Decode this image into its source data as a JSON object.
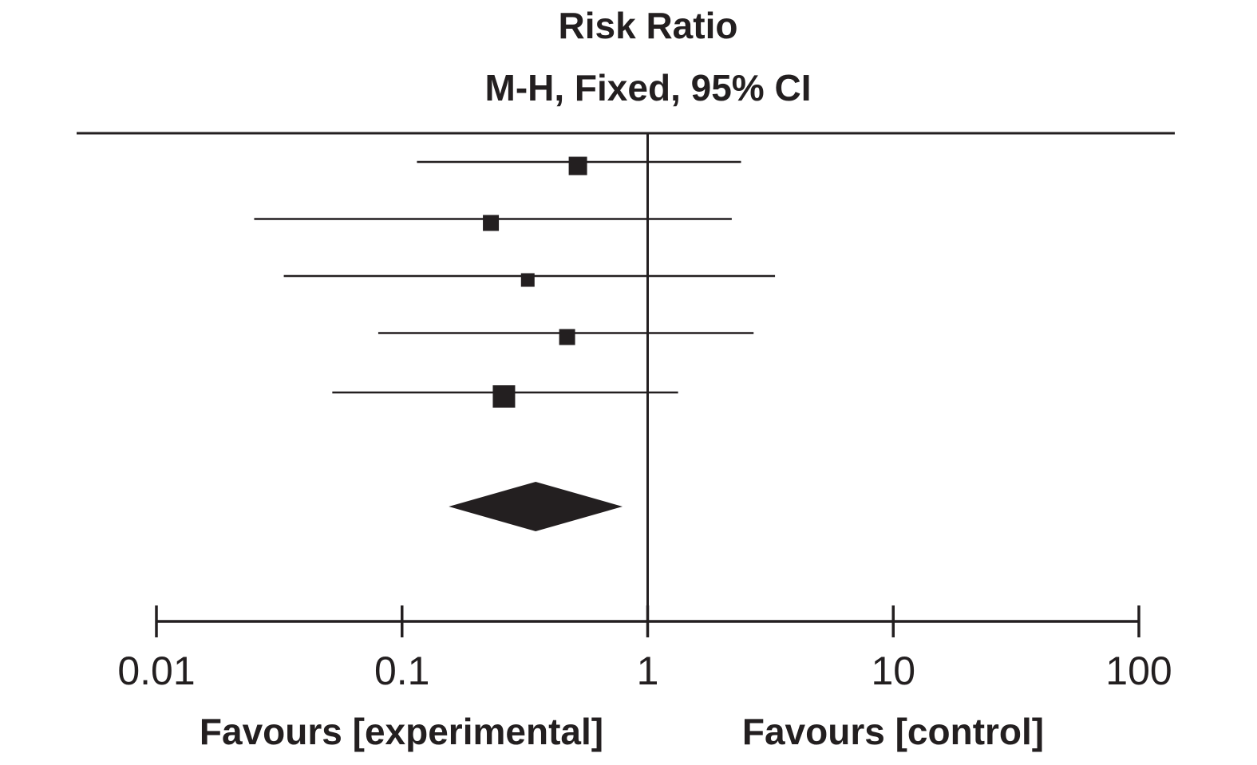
{
  "chart_data": {
    "type": "forest",
    "title": "Risk Ratio",
    "subtitle": "M-H, Fixed, 95% CI",
    "x_scale": "log",
    "xlim": [
      0.01,
      100
    ],
    "null_value": 1,
    "ticks": [
      {
        "value": 0.01,
        "label": "0.01"
      },
      {
        "value": 0.1,
        "label": "0.1"
      },
      {
        "value": 1,
        "label": "1"
      },
      {
        "value": 10,
        "label": "10"
      },
      {
        "value": 100,
        "label": "100"
      }
    ],
    "studies": [
      {
        "estimate": 0.52,
        "ci_low": 0.115,
        "ci_high": 2.4,
        "weight": 1.15
      },
      {
        "estimate": 0.23,
        "ci_low": 0.025,
        "ci_high": 2.2,
        "weight": 1.0
      },
      {
        "estimate": 0.325,
        "ci_low": 0.033,
        "ci_high": 3.3,
        "weight": 0.85
      },
      {
        "estimate": 0.47,
        "ci_low": 0.08,
        "ci_high": 2.7,
        "weight": 1.0
      },
      {
        "estimate": 0.26,
        "ci_low": 0.052,
        "ci_high": 1.33,
        "weight": 1.4
      }
    ],
    "pooled": {
      "estimate": 0.35,
      "ci_low": 0.155,
      "ci_high": 0.79
    },
    "favours_left": "Favours [experimental]",
    "favours_right": "Favours [control]",
    "colors": {
      "ink": "#231f20",
      "background": "#ffffff"
    }
  }
}
